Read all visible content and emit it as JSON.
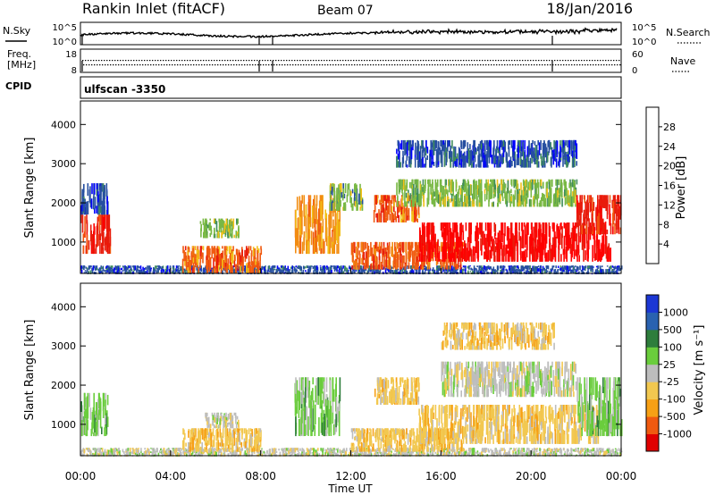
{
  "header": {
    "station": "Rankin Inlet (fitACF)",
    "beam": "Beam 07",
    "date": "18/Jan/2016"
  },
  "summary": {
    "nsky_label": "N.Sky",
    "nsky_ticks": [
      "10^5",
      "10^0"
    ],
    "nsearch_label": "N.Search",
    "nsearch_ticks": [
      "10^5",
      "10^0"
    ],
    "freq_label_1": "Freq.",
    "freq_label_2": "[MHz]",
    "freq_ticks": [
      "18",
      "8"
    ],
    "nave_label": "Nave",
    "nave_ticks": [
      "60",
      "0"
    ],
    "cpid_label": "CPID",
    "cpid_value": "ulfscan -3350"
  },
  "colors": {
    "power_scale": [
      "#0000ff",
      "#264fa0",
      "#3f8c5d",
      "#79b844",
      "#f2c018",
      "#f28c12",
      "#f05a10",
      "#e81c0c",
      "#ff0000"
    ],
    "velocity_scale": [
      "#e00000",
      "#f05a10",
      "#f7a015",
      "#f2c850",
      "#bdbdbd",
      "#6acd3c",
      "#2e7d3c",
      "#2a62b0",
      "#1c37d4"
    ],
    "ground_scatter": "#bdbdbd"
  },
  "chart_data": [
    {
      "type": "heatmap",
      "panel": "power",
      "xlabel": "",
      "ylabel": "Slant Range [km]",
      "x_ticks": [
        "00:00",
        "04:00",
        "08:00",
        "12:00",
        "16:00",
        "20:00",
        "00:00"
      ],
      "x_range_hours": [
        0,
        24
      ],
      "y_ticks": [
        1000,
        2000,
        3000,
        4000
      ],
      "ylim": [
        200,
        4600
      ],
      "colorbar": {
        "label": "Power [dB]",
        "ticks": [
          "4",
          "8",
          "12",
          "16",
          "20",
          "24",
          "28"
        ],
        "range": [
          0,
          30
        ]
      },
      "regions": [
        {
          "t0": 0.0,
          "t1": 1.3,
          "r0": 700,
          "r1": 1700,
          "value": 26
        },
        {
          "t0": 0.0,
          "t1": 1.2,
          "r0": 1700,
          "r1": 2500,
          "value": 6
        },
        {
          "t0": 0.0,
          "t1": 24.0,
          "r0": 180,
          "r1": 400,
          "value": 6
        },
        {
          "t0": 4.5,
          "t1": 8.0,
          "r0": 200,
          "r1": 900,
          "value": 20
        },
        {
          "t0": 5.3,
          "t1": 7.0,
          "r0": 1100,
          "r1": 1600,
          "value": 12
        },
        {
          "t0": 9.5,
          "t1": 11.5,
          "r0": 700,
          "r1": 2200,
          "value": 18
        },
        {
          "t0": 11.0,
          "t1": 12.5,
          "r0": 1800,
          "r1": 2500,
          "value": 10
        },
        {
          "t0": 13.0,
          "t1": 15.0,
          "r0": 1500,
          "r1": 2200,
          "value": 20
        },
        {
          "t0": 12.0,
          "t1": 17.0,
          "r0": 300,
          "r1": 1000,
          "value": 22
        },
        {
          "t0": 15.0,
          "t1": 23.5,
          "r0": 500,
          "r1": 1500,
          "value": 27
        },
        {
          "t0": 14.0,
          "t1": 22.0,
          "r0": 1900,
          "r1": 2600,
          "value": 12
        },
        {
          "t0": 22.0,
          "t1": 24.0,
          "r0": 1200,
          "r1": 2200,
          "value": 24
        },
        {
          "t0": 14.0,
          "t1": 22.0,
          "r0": 2900,
          "r1": 3600,
          "value": 6
        }
      ]
    },
    {
      "type": "heatmap",
      "panel": "velocity",
      "xlabel": "Time UT",
      "ylabel": "Slant Range [km]",
      "x_ticks": [
        "00:00",
        "04:00",
        "08:00",
        "12:00",
        "16:00",
        "20:00",
        "00:00"
      ],
      "x_range_hours": [
        0,
        24
      ],
      "y_ticks": [
        1000,
        2000,
        3000,
        4000
      ],
      "ylim": [
        200,
        4600
      ],
      "colorbar": {
        "label": "Velocity [m s⁻¹]",
        "ticks": [
          "1000",
          "500",
          "100",
          "25",
          "-25",
          "-100",
          "-500",
          "-1000"
        ],
        "range": [
          -1500,
          1500
        ]
      },
      "regions": [
        {
          "t0": 0.0,
          "t1": 1.2,
          "r0": 700,
          "r1": 1800,
          "value": 300
        },
        {
          "t0": 0.0,
          "t1": 24.0,
          "r0": 180,
          "r1": 400,
          "value": 0
        },
        {
          "t0": 4.5,
          "t1": 8.0,
          "r0": 300,
          "r1": 900,
          "value": -300
        },
        {
          "t0": 5.5,
          "t1": 7.0,
          "r0": 900,
          "r1": 1300,
          "value": 0
        },
        {
          "t0": 9.5,
          "t1": 11.5,
          "r0": 700,
          "r1": 2200,
          "value": 400
        },
        {
          "t0": 13.0,
          "t1": 15.0,
          "r0": 1500,
          "r1": 2200,
          "value": -300
        },
        {
          "t0": 12.0,
          "t1": 17.0,
          "r0": 300,
          "r1": 900,
          "value": -300
        },
        {
          "t0": 15.0,
          "t1": 23.0,
          "r0": 500,
          "r1": 1500,
          "value": -300
        },
        {
          "t0": 16.0,
          "t1": 22.0,
          "r0": 1700,
          "r1": 2600,
          "value": 0
        },
        {
          "t0": 22.0,
          "t1": 24.0,
          "r0": 700,
          "r1": 2200,
          "value": 300
        },
        {
          "t0": 16.0,
          "t1": 21.0,
          "r0": 2900,
          "r1": 3600,
          "value": -300
        }
      ]
    }
  ]
}
